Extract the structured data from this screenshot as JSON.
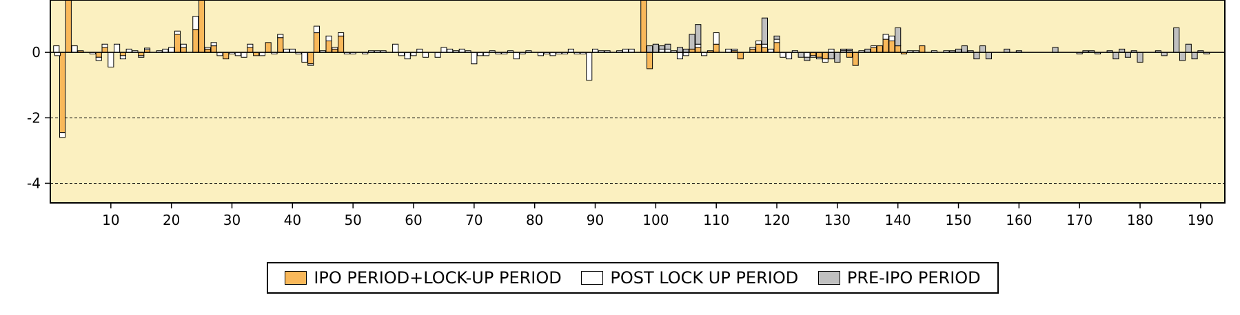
{
  "chart_data": {
    "type": "bar",
    "stacked": true,
    "title": "",
    "xlabel": "",
    "ylabel": "",
    "xlim": [
      0,
      194
    ],
    "ylim": [
      -4.6,
      1.6
    ],
    "x_ticks": [
      10,
      20,
      30,
      40,
      50,
      60,
      70,
      80,
      90,
      100,
      110,
      120,
      130,
      140,
      150,
      160,
      170,
      180,
      190
    ],
    "y_ticks": [
      0,
      -2,
      -4
    ],
    "y_gridlines": [
      -2,
      -4
    ],
    "legend_position": "bottom",
    "colors": {
      "plot_background": "#fbf0c0",
      "series": [
        "#f9b85a",
        "#ffffff",
        "#c0c0c0"
      ]
    },
    "series": [
      {
        "name": "IPO PERIOD+LOCK-UP PERIOD",
        "color": "#f9b85a",
        "points": [
          [
            2,
            -2.45
          ],
          [
            3,
            1.6
          ],
          [
            5,
            0.05
          ],
          [
            8,
            -0.15
          ],
          [
            9,
            0.15
          ],
          [
            12,
            -0.1
          ],
          [
            15,
            -0.1
          ],
          [
            16,
            0.08
          ],
          [
            21,
            0.55
          ],
          [
            22,
            0.15
          ],
          [
            24,
            0.7
          ],
          [
            25,
            1.6
          ],
          [
            26,
            0.1
          ],
          [
            27,
            0.2
          ],
          [
            29,
            -0.2
          ],
          [
            33,
            0.15
          ],
          [
            34,
            -0.1
          ],
          [
            36,
            0.3
          ],
          [
            38,
            0.45
          ],
          [
            43,
            -0.35
          ],
          [
            44,
            0.6
          ],
          [
            46,
            0.35
          ],
          [
            47,
            0.1
          ],
          [
            48,
            0.5
          ],
          [
            98,
            1.6
          ],
          [
            99,
            -0.5
          ],
          [
            106,
            0.1
          ],
          [
            107,
            0.15
          ],
          [
            109,
            0.05
          ],
          [
            110,
            0.25
          ],
          [
            113,
            0.05
          ],
          [
            114,
            -0.2
          ],
          [
            116,
            0.1
          ],
          [
            117,
            0.25
          ],
          [
            118,
            0.15
          ],
          [
            120,
            0.3
          ],
          [
            126,
            -0.1
          ],
          [
            127,
            -0.15
          ],
          [
            128,
            -0.2
          ],
          [
            132,
            -0.15
          ],
          [
            133,
            -0.4
          ],
          [
            136,
            0.15
          ],
          [
            137,
            0.2
          ],
          [
            138,
            0.4
          ],
          [
            139,
            0.35
          ],
          [
            140,
            0.2
          ],
          [
            141,
            -0.05
          ],
          [
            144,
            0.2
          ]
        ]
      },
      {
        "name": "POST LOCK UP PERIOD",
        "color": "#ffffff",
        "points": [
          [
            1,
            0.2
          ],
          [
            1.2,
            -0.1
          ],
          [
            2,
            -0.15
          ],
          [
            4,
            0.2
          ],
          [
            7,
            -0.05
          ],
          [
            8,
            -0.1
          ],
          [
            9,
            0.1
          ],
          [
            10,
            -0.45
          ],
          [
            11,
            0.25
          ],
          [
            12,
            -0.1
          ],
          [
            13,
            0.1
          ],
          [
            14,
            0.05
          ],
          [
            15,
            -0.05
          ],
          [
            16,
            0.05
          ],
          [
            18,
            0.05
          ],
          [
            19,
            0.1
          ],
          [
            20,
            0.15
          ],
          [
            21,
            0.1
          ],
          [
            22,
            0.1
          ],
          [
            24,
            0.4
          ],
          [
            26,
            0.05
          ],
          [
            27,
            0.1
          ],
          [
            28,
            -0.1
          ],
          [
            30,
            -0.05
          ],
          [
            31,
            -0.1
          ],
          [
            32,
            -0.15
          ],
          [
            33,
            0.1
          ],
          [
            35,
            -0.1
          ],
          [
            37,
            -0.05
          ],
          [
            38,
            0.1
          ],
          [
            39,
            0.1
          ],
          [
            40,
            0.1
          ],
          [
            41,
            -0.05
          ],
          [
            42,
            -0.3
          ],
          [
            43,
            -0.05
          ],
          [
            44,
            0.2
          ],
          [
            45,
            0.05
          ],
          [
            46,
            0.15
          ],
          [
            47,
            0.05
          ],
          [
            48,
            0.1
          ],
          [
            49,
            -0.05
          ],
          [
            50,
            -0.05
          ],
          [
            52,
            -0.05
          ],
          [
            53,
            0.05
          ],
          [
            54,
            0.05
          ],
          [
            55,
            0.05
          ],
          [
            57,
            0.25
          ],
          [
            58,
            -0.1
          ],
          [
            59,
            -0.2
          ],
          [
            60,
            -0.1
          ],
          [
            61,
            0.1
          ],
          [
            62,
            -0.15
          ],
          [
            64,
            -0.15
          ],
          [
            65,
            0.15
          ],
          [
            66,
            0.1
          ],
          [
            67,
            0.05
          ],
          [
            68,
            0.1
          ],
          [
            69,
            0.05
          ],
          [
            70,
            -0.35
          ],
          [
            71,
            -0.1
          ],
          [
            72,
            -0.1
          ],
          [
            73,
            0.05
          ],
          [
            74,
            -0.05
          ],
          [
            75,
            -0.05
          ],
          [
            76,
            0.05
          ],
          [
            77,
            -0.2
          ],
          [
            78,
            -0.05
          ],
          [
            79,
            0.05
          ],
          [
            81,
            -0.1
          ],
          [
            82,
            -0.05
          ],
          [
            83,
            -0.1
          ],
          [
            84,
            -0.05
          ],
          [
            85,
            -0.05
          ],
          [
            86,
            0.1
          ],
          [
            87,
            -0.05
          ],
          [
            88,
            -0.05
          ],
          [
            89,
            -0.85
          ],
          [
            90,
            0.1
          ],
          [
            91,
            0.05
          ],
          [
            92,
            0.05
          ],
          [
            94,
            0.05
          ],
          [
            95,
            0.1
          ],
          [
            96,
            0.1
          ],
          [
            98,
            0.05
          ],
          [
            101,
            0.1
          ],
          [
            102,
            0.1
          ],
          [
            103,
            0.05
          ],
          [
            104,
            -0.2
          ],
          [
            105,
            -0.1
          ],
          [
            107,
            0.1
          ],
          [
            108,
            -0.1
          ],
          [
            110,
            0.35
          ],
          [
            112,
            0.1
          ],
          [
            113,
            0.05
          ],
          [
            116,
            0.05
          ],
          [
            117,
            0.1
          ],
          [
            118,
            0.1
          ],
          [
            119,
            0.1
          ],
          [
            120,
            0.1
          ],
          [
            121,
            -0.15
          ],
          [
            122,
            -0.2
          ],
          [
            123,
            0.05
          ],
          [
            125,
            -0.15
          ],
          [
            126,
            -0.05
          ],
          [
            127,
            -0.05
          ],
          [
            128,
            -0.1
          ],
          [
            129,
            0.1
          ],
          [
            131,
            0.05
          ],
          [
            132,
            0.05
          ],
          [
            134,
            0.05
          ],
          [
            136,
            0.05
          ],
          [
            138,
            0.15
          ],
          [
            139,
            0.15
          ],
          [
            142,
            0.05
          ],
          [
            143,
            0.05
          ],
          [
            146,
            0.05
          ],
          [
            148,
            0.05
          ]
        ]
      },
      {
        "name": "PRE-IPO PERIOD",
        "color": "#c0c0c0",
        "points": [
          [
            98,
            0.3
          ],
          [
            99,
            0.2
          ],
          [
            100,
            0.25
          ],
          [
            101,
            0.1
          ],
          [
            102,
            0.15
          ],
          [
            104,
            0.15
          ],
          [
            105,
            0.1
          ],
          [
            106,
            0.45
          ],
          [
            107,
            0.6
          ],
          [
            118,
            0.8
          ],
          [
            120,
            0.1
          ],
          [
            124,
            -0.15
          ],
          [
            125,
            -0.1
          ],
          [
            129,
            -0.2
          ],
          [
            130,
            -0.3
          ],
          [
            131,
            0.05
          ],
          [
            132,
            0.05
          ],
          [
            135,
            0.1
          ],
          [
            140,
            0.55
          ],
          [
            149,
            0.05
          ],
          [
            150,
            0.1
          ],
          [
            151,
            0.2
          ],
          [
            152,
            0.05
          ],
          [
            153,
            -0.2
          ],
          [
            154,
            0.2
          ],
          [
            155,
            -0.2
          ],
          [
            158,
            0.1
          ],
          [
            160,
            0.05
          ],
          [
            166,
            0.15
          ],
          [
            170,
            -0.05
          ],
          [
            171,
            0.05
          ],
          [
            172,
            0.05
          ],
          [
            173,
            -0.05
          ],
          [
            175,
            0.05
          ],
          [
            176,
            -0.2
          ],
          [
            177,
            0.1
          ],
          [
            178,
            -0.15
          ],
          [
            179,
            0.05
          ],
          [
            180,
            -0.3
          ],
          [
            183,
            0.05
          ],
          [
            184,
            -0.1
          ],
          [
            186,
            0.75
          ],
          [
            187,
            -0.25
          ],
          [
            188,
            0.25
          ],
          [
            189,
            -0.2
          ],
          [
            190,
            0.05
          ],
          [
            191,
            -0.05
          ]
        ]
      }
    ]
  }
}
